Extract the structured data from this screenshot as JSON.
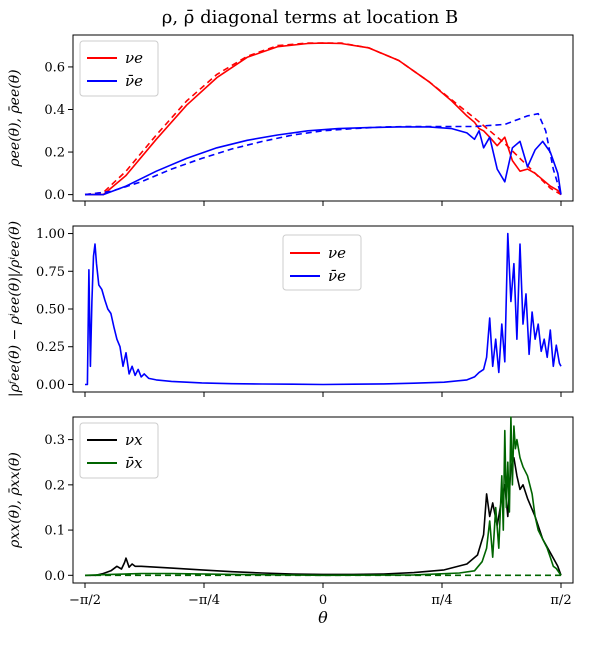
{
  "figure": {
    "title": "ρ, ρ̄ diagonal terms at location B",
    "xlabel": "θ",
    "x_tick_labels": [
      "−π/2",
      "−π/4",
      "0",
      "π/4",
      "π/2"
    ]
  },
  "colors": {
    "nu_e": "#ff0000",
    "nubar_e": "#0000ff",
    "nu_x": "#000000",
    "nubar_x": "#006400"
  },
  "chart_data": [
    {
      "type": "line",
      "panel": "top",
      "ylabel": "ρee(θ), ρ̄ee(θ)",
      "xlim": [
        -1.65,
        1.65
      ],
      "ylim": [
        -0.03,
        0.75
      ],
      "y_ticks": [
        0.0,
        0.2,
        0.4,
        0.6
      ],
      "y_tick_labels": [
        "0.0",
        "0.2",
        "0.4",
        "0.6"
      ],
      "legend": {
        "placement": "upper-left",
        "entries": [
          "νe",
          "ν̄e"
        ]
      },
      "series": [
        {
          "name": "νe",
          "style": "solid",
          "color_key": "nu_e",
          "x": [
            -1.5708,
            -1.45,
            -1.3,
            -1.1,
            -0.9,
            -0.7,
            -0.5,
            -0.3,
            -0.1,
            0.0,
            0.12,
            0.3,
            0.5,
            0.7,
            0.85,
            0.95,
            1.0,
            1.03,
            1.06,
            1.1,
            1.15,
            1.2,
            1.25,
            1.3,
            1.35,
            1.4,
            1.45,
            1.5,
            1.55,
            1.5708
          ],
          "y": [
            0.0,
            0.0,
            0.09,
            0.26,
            0.42,
            0.55,
            0.645,
            0.695,
            0.71,
            0.712,
            0.71,
            0.69,
            0.63,
            0.53,
            0.44,
            0.37,
            0.34,
            0.31,
            0.3,
            0.27,
            0.23,
            0.27,
            0.16,
            0.11,
            0.12,
            0.1,
            0.07,
            0.04,
            0.02,
            0.0
          ]
        },
        {
          "name": "νe initial",
          "style": "dashed",
          "color_key": "nu_e",
          "x": [
            -1.5708,
            -1.45,
            -1.3,
            -1.1,
            -0.9,
            -0.7,
            -0.5,
            -0.3,
            -0.1,
            0.12,
            0.3,
            0.5,
            0.7,
            0.85,
            1.0,
            1.1,
            1.2,
            1.3,
            1.4,
            1.5,
            1.5708
          ],
          "y": [
            0.0,
            0.01,
            0.11,
            0.28,
            0.44,
            0.565,
            0.65,
            0.7,
            0.712,
            0.712,
            0.69,
            0.63,
            0.53,
            0.445,
            0.36,
            0.3,
            0.24,
            0.17,
            0.1,
            0.03,
            0.0
          ]
        },
        {
          "name": "ν̄e",
          "style": "solid",
          "color_key": "nubar_e",
          "x": [
            -1.5708,
            -1.45,
            -1.3,
            -1.1,
            -0.9,
            -0.7,
            -0.5,
            -0.3,
            -0.1,
            0.1,
            0.3,
            0.5,
            0.7,
            0.85,
            0.95,
            1.0,
            1.03,
            1.06,
            1.1,
            1.15,
            1.2,
            1.25,
            1.3,
            1.35,
            1.4,
            1.45,
            1.5,
            1.55,
            1.5708
          ],
          "y": [
            0.0,
            0.0,
            0.04,
            0.11,
            0.17,
            0.22,
            0.255,
            0.28,
            0.3,
            0.31,
            0.315,
            0.318,
            0.318,
            0.31,
            0.29,
            0.26,
            0.3,
            0.22,
            0.27,
            0.12,
            0.06,
            0.22,
            0.25,
            0.13,
            0.21,
            0.25,
            0.2,
            0.1,
            0.0
          ]
        },
        {
          "name": "ν̄e initial",
          "style": "dashed",
          "color_key": "nubar_e",
          "x": [
            -1.5708,
            -1.4,
            -1.2,
            -1.0,
            -0.8,
            -0.6,
            -0.4,
            -0.2,
            0.0,
            0.2,
            0.4,
            0.6,
            0.8,
            1.0,
            1.2,
            1.35,
            1.42,
            1.47,
            1.52,
            1.5708
          ],
          "y": [
            0.0,
            0.015,
            0.06,
            0.12,
            0.17,
            0.215,
            0.25,
            0.28,
            0.3,
            0.31,
            0.318,
            0.32,
            0.32,
            0.32,
            0.33,
            0.37,
            0.38,
            0.3,
            0.12,
            0.0
          ]
        }
      ]
    },
    {
      "type": "line",
      "panel": "middle",
      "ylabel": "|ρᶠee(θ) − ρⁱee(θ)|/ρⁱee(θ)",
      "xlim": [
        -1.65,
        1.65
      ],
      "ylim": [
        -0.05,
        1.05
      ],
      "y_ticks": [
        0.0,
        0.25,
        0.5,
        0.75,
        1.0
      ],
      "y_tick_labels": [
        "0.00",
        "0.25",
        "0.50",
        "0.75",
        "1.00"
      ],
      "legend": {
        "placement": "upper-center",
        "entries": [
          "νe",
          "ν̄e"
        ]
      },
      "series": [
        {
          "name": "ν̄e",
          "style": "solid",
          "color_key": "nubar_e",
          "x": [
            -1.5708,
            -1.555,
            -1.545,
            -1.535,
            -1.525,
            -1.515,
            -1.505,
            -1.495,
            -1.48,
            -1.46,
            -1.44,
            -1.42,
            -1.4,
            -1.38,
            -1.36,
            -1.34,
            -1.32,
            -1.3,
            -1.28,
            -1.26,
            -1.24,
            -1.22,
            -1.2,
            -1.18,
            -1.15,
            -1.1,
            -1.0,
            -0.8,
            -0.6,
            -0.4,
            -0.2,
            0.0,
            0.2,
            0.4,
            0.6,
            0.8,
            0.95,
            1.0,
            1.03,
            1.06,
            1.08,
            1.1,
            1.12,
            1.14,
            1.16,
            1.18,
            1.2,
            1.22,
            1.24,
            1.26,
            1.28,
            1.3,
            1.32,
            1.34,
            1.36,
            1.38,
            1.4,
            1.42,
            1.44,
            1.46,
            1.48,
            1.5,
            1.52,
            1.54,
            1.56,
            1.5708
          ],
          "y": [
            0.0,
            0.0,
            0.76,
            0.12,
            0.55,
            0.85,
            0.93,
            0.8,
            0.66,
            0.63,
            0.56,
            0.5,
            0.47,
            0.38,
            0.3,
            0.25,
            0.12,
            0.21,
            0.07,
            0.12,
            0.06,
            0.1,
            0.05,
            0.07,
            0.04,
            0.03,
            0.02,
            0.01,
            0.005,
            0.003,
            0.002,
            0.0,
            0.002,
            0.004,
            0.008,
            0.015,
            0.03,
            0.05,
            0.08,
            0.1,
            0.18,
            0.44,
            0.12,
            0.3,
            0.08,
            0.4,
            0.15,
            1.0,
            0.55,
            0.8,
            0.3,
            0.93,
            0.4,
            0.6,
            0.2,
            0.48,
            0.3,
            0.4,
            0.22,
            0.3,
            0.18,
            0.36,
            0.12,
            0.26,
            0.14,
            0.12
          ]
        }
      ]
    },
    {
      "type": "line",
      "panel": "bottom",
      "ylabel": "ρxx(θ), ρ̄xx(θ)",
      "xlim": [
        -1.65,
        1.65
      ],
      "ylim": [
        -0.017,
        0.35
      ],
      "y_ticks": [
        0.0,
        0.1,
        0.2,
        0.3
      ],
      "y_tick_labels": [
        "0.0",
        "0.1",
        "0.2",
        "0.3"
      ],
      "legend": {
        "placement": "upper-left",
        "entries": [
          "νx",
          "ν̄x"
        ]
      },
      "series": [
        {
          "name": "νx",
          "style": "solid",
          "color_key": "nu_x",
          "x": [
            -1.5708,
            -1.5,
            -1.45,
            -1.4,
            -1.36,
            -1.33,
            -1.31,
            -1.3,
            -1.28,
            -1.26,
            -1.24,
            -1.2,
            -1.1,
            -1.0,
            -0.8,
            -0.6,
            -0.4,
            -0.2,
            0.0,
            0.2,
            0.4,
            0.6,
            0.8,
            0.95,
            1.02,
            1.06,
            1.08,
            1.1,
            1.12,
            1.15,
            1.18,
            1.2,
            1.22,
            1.24,
            1.26,
            1.28,
            1.3,
            1.32,
            1.35,
            1.4,
            1.45,
            1.5,
            1.55,
            1.5708
          ],
          "y": [
            0.0,
            0.0,
            0.004,
            0.01,
            0.02,
            0.014,
            0.028,
            0.038,
            0.018,
            0.025,
            0.02,
            0.02,
            0.018,
            0.016,
            0.012,
            0.008,
            0.005,
            0.003,
            0.002,
            0.002,
            0.003,
            0.006,
            0.012,
            0.025,
            0.045,
            0.09,
            0.18,
            0.13,
            0.16,
            0.11,
            0.17,
            0.2,
            0.13,
            0.24,
            0.26,
            0.22,
            0.19,
            0.2,
            0.17,
            0.13,
            0.08,
            0.05,
            0.02,
            0.0
          ]
        },
        {
          "name": "ν̄x",
          "style": "solid",
          "color_key": "nubar_x",
          "x": [
            -1.5708,
            -1.4,
            -1.2,
            -1.0,
            -0.6,
            0.0,
            0.6,
            0.9,
            1.0,
            1.05,
            1.08,
            1.1,
            1.12,
            1.14,
            1.16,
            1.18,
            1.19,
            1.2,
            1.21,
            1.22,
            1.23,
            1.24,
            1.25,
            1.26,
            1.27,
            1.28,
            1.3,
            1.32,
            1.35,
            1.38,
            1.4,
            1.42,
            1.45,
            1.48,
            1.5,
            1.52,
            1.54,
            1.56,
            1.5708
          ],
          "y": [
            0.0,
            0.002,
            0.004,
            0.004,
            0.002,
            0.0,
            0.001,
            0.005,
            0.01,
            0.03,
            0.06,
            0.12,
            0.04,
            0.15,
            0.06,
            0.22,
            0.1,
            0.32,
            0.15,
            0.25,
            0.14,
            0.35,
            0.2,
            0.33,
            0.28,
            0.3,
            0.26,
            0.24,
            0.22,
            0.18,
            0.13,
            0.1,
            0.08,
            0.06,
            0.04,
            0.02,
            0.015,
            0.005,
            0.0
          ]
        },
        {
          "name": "νx initial",
          "style": "dashed",
          "color_key": "nubar_x",
          "x": [
            -1.5708,
            1.5708
          ],
          "y": [
            0.0,
            0.0
          ]
        }
      ]
    }
  ]
}
